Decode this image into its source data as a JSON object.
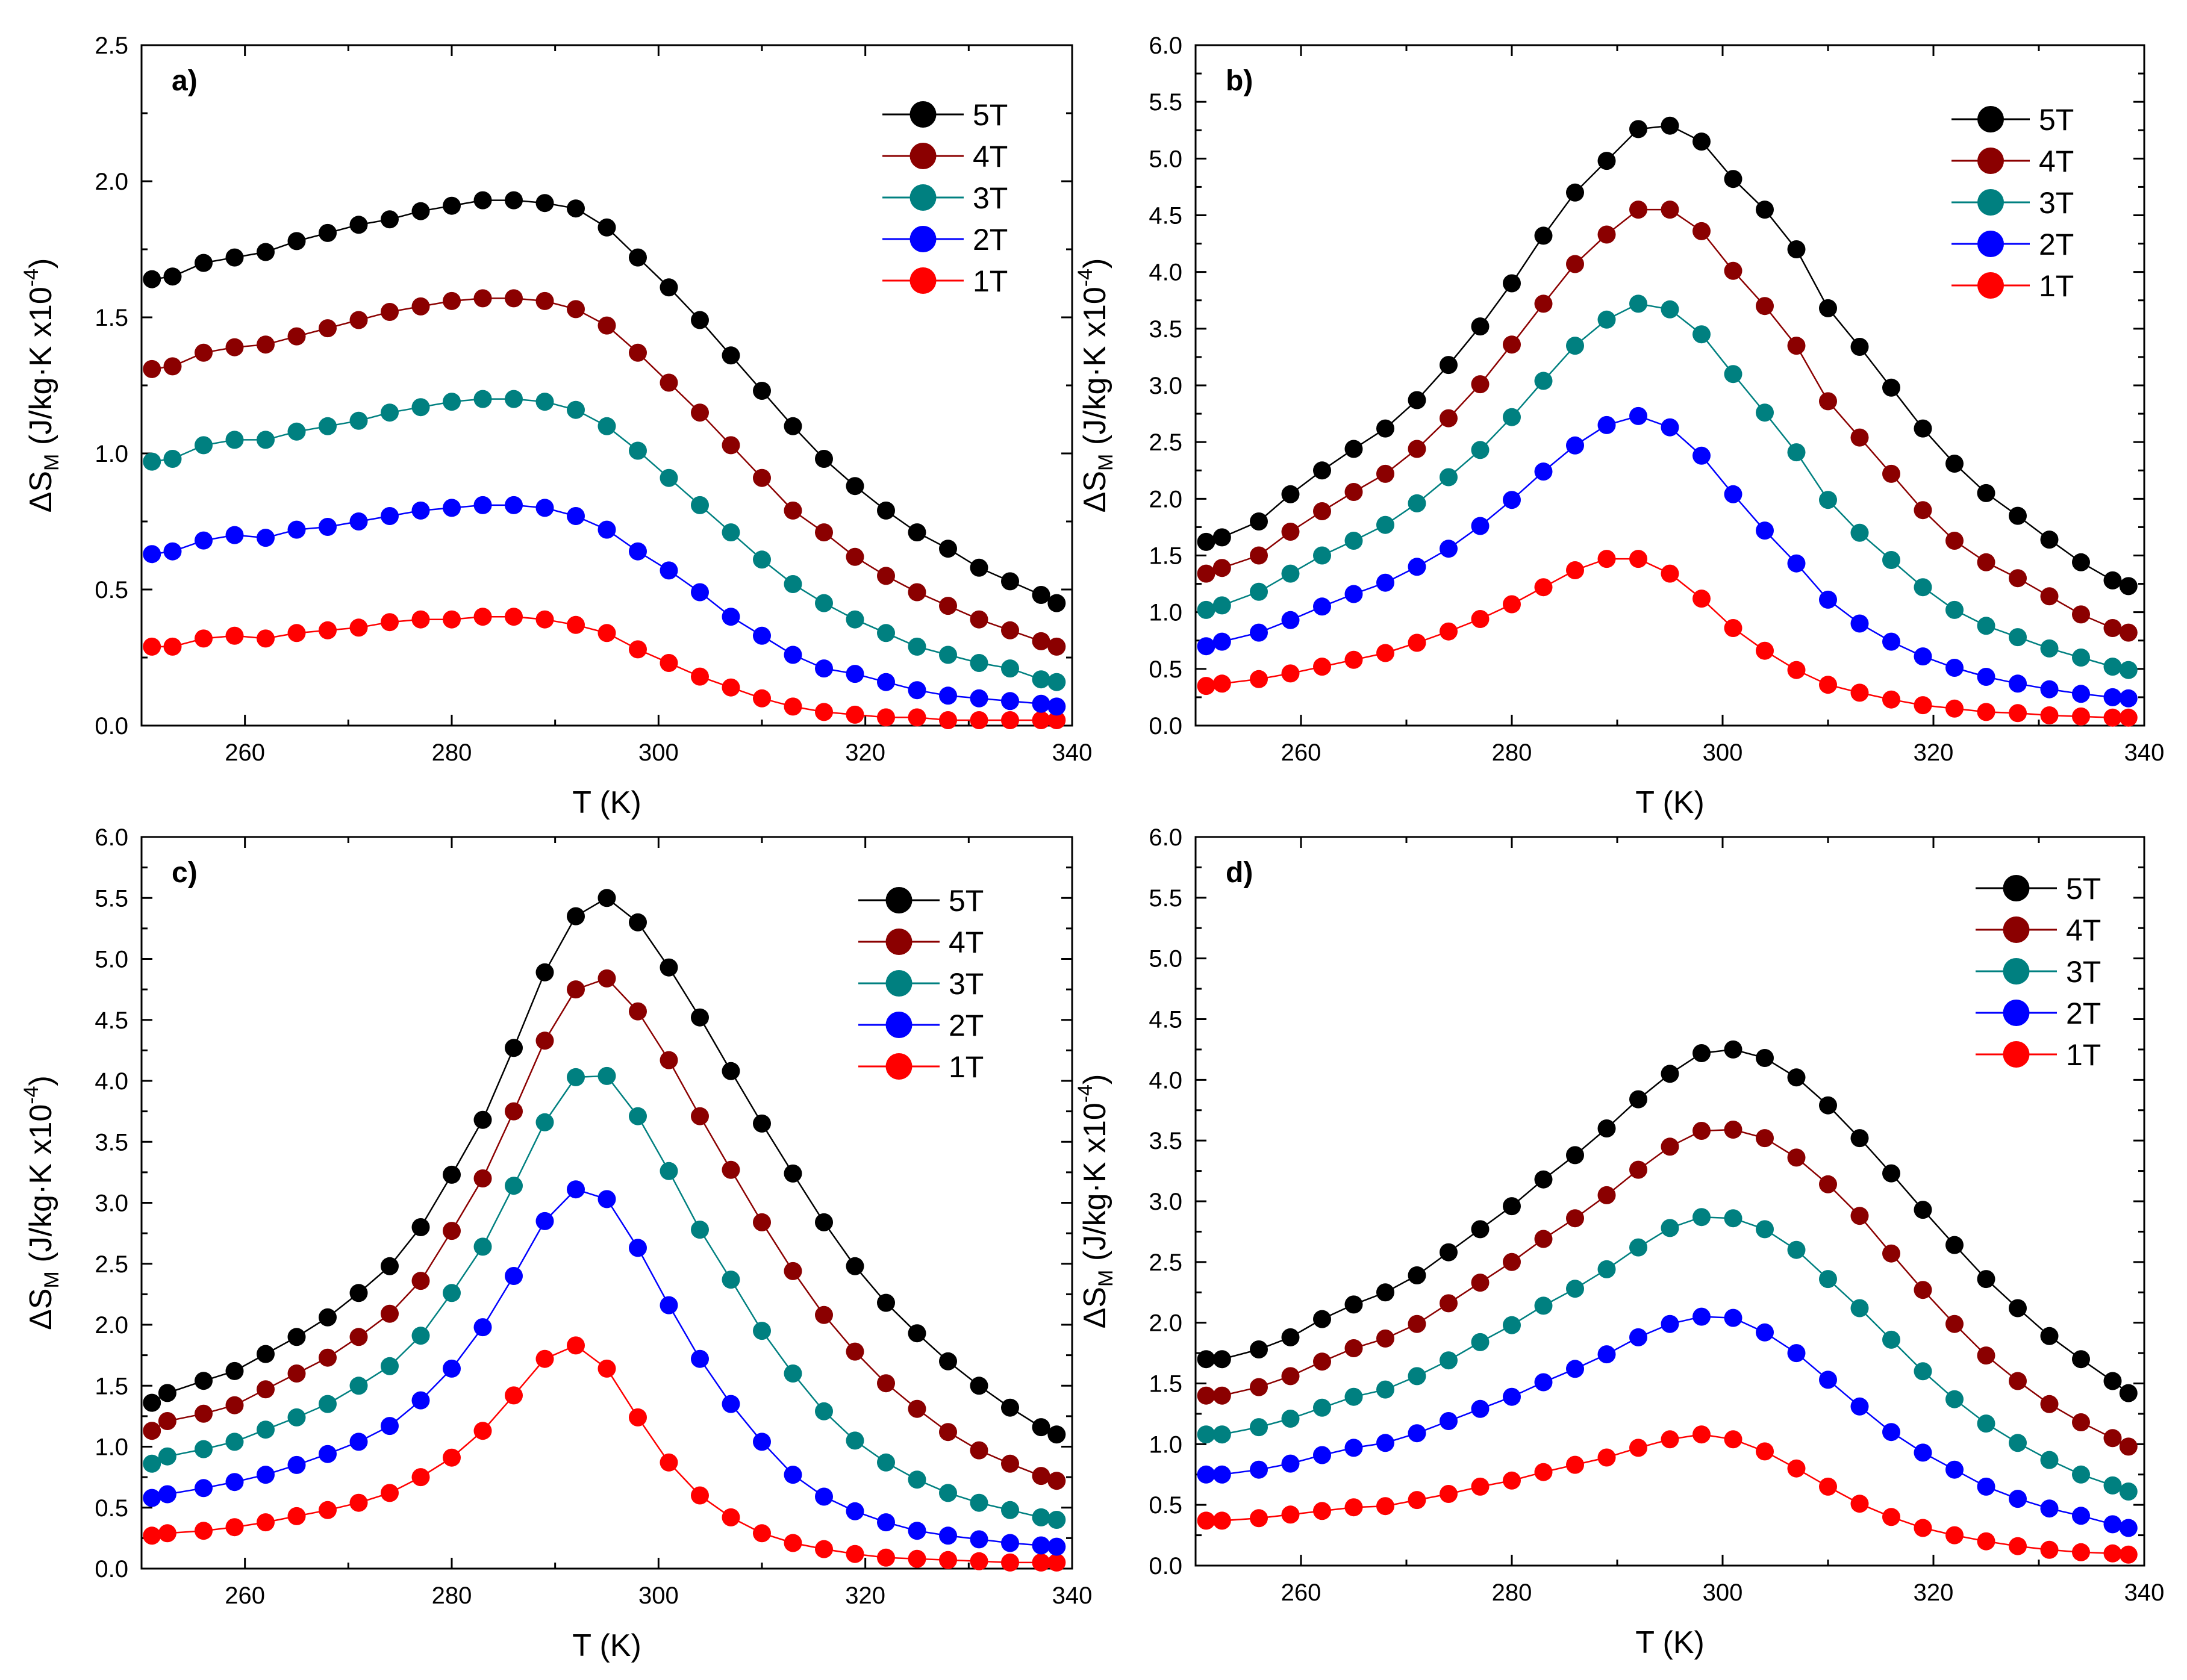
{
  "chart_data": [
    {
      "type": "line",
      "panel_label": "a)",
      "xlabel": "T (K)",
      "ylabel_parts": {
        "delta": "ΔS",
        "sub": "M",
        "unit": " (J/kg·K x10",
        "sup": "-4",
        "close": ")"
      },
      "xlim": [
        250,
        340
      ],
      "ylim": [
        0,
        2.5
      ],
      "xticks": [
        "260",
        "280",
        "300",
        "320",
        "340"
      ],
      "yticks": [
        "0.0",
        "0.5",
        "1.0",
        "1.5",
        "2.0",
        "2.5"
      ],
      "legend_position": "top-right",
      "x": [
        251,
        253,
        256,
        259,
        262,
        265,
        268,
        271,
        274,
        277,
        280,
        283,
        286,
        289,
        292,
        295,
        298,
        301,
        304,
        307,
        310,
        313,
        316,
        319,
        322,
        325,
        328,
        331,
        334,
        337,
        338.5
      ],
      "series": [
        {
          "name": "5T",
          "color": "#000000",
          "values": [
            1.64,
            1.65,
            1.7,
            1.72,
            1.74,
            1.78,
            1.81,
            1.84,
            1.86,
            1.89,
            1.91,
            1.93,
            1.93,
            1.92,
            1.9,
            1.83,
            1.72,
            1.61,
            1.49,
            1.36,
            1.23,
            1.1,
            0.98,
            0.88,
            0.79,
            0.71,
            0.65,
            0.58,
            0.53,
            0.48,
            0.45
          ]
        },
        {
          "name": "4T",
          "color": "#8b0000",
          "values": [
            1.31,
            1.32,
            1.37,
            1.39,
            1.4,
            1.43,
            1.46,
            1.49,
            1.52,
            1.54,
            1.56,
            1.57,
            1.57,
            1.56,
            1.53,
            1.47,
            1.37,
            1.26,
            1.15,
            1.03,
            0.91,
            0.79,
            0.71,
            0.62,
            0.55,
            0.49,
            0.44,
            0.39,
            0.35,
            0.31,
            0.29
          ]
        },
        {
          "name": "3T",
          "color": "#008080",
          "values": [
            0.97,
            0.98,
            1.03,
            1.05,
            1.05,
            1.08,
            1.1,
            1.12,
            1.15,
            1.17,
            1.19,
            1.2,
            1.2,
            1.19,
            1.16,
            1.1,
            1.01,
            0.91,
            0.81,
            0.71,
            0.61,
            0.52,
            0.45,
            0.39,
            0.34,
            0.29,
            0.26,
            0.23,
            0.21,
            0.17,
            0.16
          ]
        },
        {
          "name": "2T",
          "color": "#0000ff",
          "values": [
            0.63,
            0.64,
            0.68,
            0.7,
            0.69,
            0.72,
            0.73,
            0.75,
            0.77,
            0.79,
            0.8,
            0.81,
            0.81,
            0.8,
            0.77,
            0.72,
            0.64,
            0.57,
            0.49,
            0.4,
            0.33,
            0.26,
            0.21,
            0.19,
            0.16,
            0.13,
            0.11,
            0.1,
            0.09,
            0.08,
            0.07
          ]
        },
        {
          "name": "1T",
          "color": "#ff0000",
          "values": [
            0.29,
            0.29,
            0.32,
            0.33,
            0.32,
            0.34,
            0.35,
            0.36,
            0.38,
            0.39,
            0.39,
            0.4,
            0.4,
            0.39,
            0.37,
            0.34,
            0.28,
            0.23,
            0.18,
            0.14,
            0.1,
            0.07,
            0.05,
            0.04,
            0.03,
            0.03,
            0.02,
            0.02,
            0.02,
            0.02,
            0.02
          ]
        }
      ]
    },
    {
      "type": "line",
      "panel_label": "b)",
      "xlabel": "T (K)",
      "ylabel_parts": {
        "delta": "ΔS",
        "sub": "M",
        "unit": " (J/kg·K x10",
        "sup": "-4",
        "close": ")"
      },
      "xlim": [
        250,
        340
      ],
      "ylim": [
        0,
        6
      ],
      "xticks": [
        "260",
        "280",
        "300",
        "320",
        "340"
      ],
      "yticks": [
        "0.0",
        "0.5",
        "1.0",
        "1.5",
        "2.0",
        "2.5",
        "3.0",
        "3.5",
        "4.0",
        "4.5",
        "5.0",
        "5.5",
        "6.0"
      ],
      "legend_position": "top-right",
      "x": [
        251,
        252.5,
        256,
        259,
        262,
        265,
        268,
        271,
        274,
        277,
        280,
        283,
        286,
        289,
        292,
        295,
        298,
        301,
        304,
        307,
        310,
        313,
        316,
        319,
        322,
        325,
        328,
        331,
        334,
        337,
        338.5
      ],
      "series": [
        {
          "name": "5T",
          "color": "#000000",
          "values": [
            1.62,
            1.66,
            1.8,
            2.04,
            2.25,
            2.44,
            2.62,
            2.87,
            3.18,
            3.52,
            3.9,
            4.32,
            4.7,
            4.98,
            5.26,
            5.29,
            5.15,
            4.82,
            4.55,
            4.2,
            3.68,
            3.34,
            2.98,
            2.62,
            2.31,
            2.05,
            1.85,
            1.64,
            1.44,
            1.28,
            1.23
          ]
        },
        {
          "name": "4T",
          "color": "#8b0000",
          "values": [
            1.34,
            1.39,
            1.5,
            1.71,
            1.89,
            2.06,
            2.22,
            2.44,
            2.71,
            3.01,
            3.36,
            3.72,
            4.07,
            4.33,
            4.55,
            4.55,
            4.36,
            4.01,
            3.7,
            3.35,
            2.86,
            2.54,
            2.22,
            1.9,
            1.63,
            1.44,
            1.3,
            1.14,
            0.98,
            0.86,
            0.82
          ]
        },
        {
          "name": "3T",
          "color": "#008080",
          "values": [
            1.02,
            1.06,
            1.18,
            1.34,
            1.5,
            1.63,
            1.77,
            1.96,
            2.19,
            2.43,
            2.72,
            3.04,
            3.35,
            3.58,
            3.72,
            3.67,
            3.45,
            3.1,
            2.76,
            2.41,
            1.99,
            1.7,
            1.46,
            1.22,
            1.02,
            0.88,
            0.78,
            0.68,
            0.6,
            0.52,
            0.49
          ]
        },
        {
          "name": "2T",
          "color": "#0000ff",
          "values": [
            0.7,
            0.74,
            0.82,
            0.93,
            1.05,
            1.16,
            1.26,
            1.4,
            1.56,
            1.76,
            1.99,
            2.24,
            2.47,
            2.65,
            2.73,
            2.63,
            2.38,
            2.04,
            1.72,
            1.43,
            1.11,
            0.9,
            0.74,
            0.61,
            0.51,
            0.43,
            0.37,
            0.32,
            0.28,
            0.25,
            0.24
          ]
        },
        {
          "name": "1T",
          "color": "#ff0000",
          "values": [
            0.35,
            0.37,
            0.41,
            0.46,
            0.52,
            0.58,
            0.64,
            0.73,
            0.83,
            0.94,
            1.07,
            1.22,
            1.37,
            1.47,
            1.47,
            1.34,
            1.12,
            0.86,
            0.66,
            0.49,
            0.36,
            0.29,
            0.23,
            0.18,
            0.15,
            0.12,
            0.11,
            0.09,
            0.08,
            0.07,
            0.07
          ]
        }
      ]
    },
    {
      "type": "line",
      "panel_label": "c)",
      "xlabel": "T (K)",
      "ylabel_parts": {
        "delta": "ΔS",
        "sub": "M",
        "unit": " (J/kg·K x10",
        "sup": "-4",
        "close": ")"
      },
      "xlim": [
        250,
        340
      ],
      "ylim": [
        0,
        6
      ],
      "xticks": [
        "260",
        "280",
        "300",
        "320",
        "340"
      ],
      "yticks": [
        "0.0",
        "0.5",
        "1.0",
        "1.5",
        "2.0",
        "2.5",
        "3.0",
        "3.5",
        "4.0",
        "4.5",
        "5.0",
        "5.5",
        "6.0"
      ],
      "legend_position": "top-right",
      "x": [
        251,
        252.5,
        256,
        259,
        262,
        265,
        268,
        271,
        274,
        277,
        280,
        283,
        286,
        289,
        292,
        295,
        298,
        301,
        304,
        307,
        310,
        313,
        316,
        319,
        322,
        325,
        328,
        331,
        334,
        337,
        338.5
      ],
      "series": [
        {
          "name": "5T",
          "color": "#000000",
          "values": [
            1.36,
            1.44,
            1.54,
            1.62,
            1.76,
            1.9,
            2.06,
            2.26,
            2.48,
            2.8,
            3.23,
            3.68,
            4.27,
            4.89,
            5.35,
            5.5,
            5.3,
            4.93,
            4.52,
            4.08,
            3.65,
            3.24,
            2.84,
            2.48,
            2.18,
            1.93,
            1.7,
            1.5,
            1.32,
            1.16,
            1.1
          ]
        },
        {
          "name": "4T",
          "color": "#8b0000",
          "values": [
            1.13,
            1.21,
            1.27,
            1.34,
            1.47,
            1.6,
            1.73,
            1.9,
            2.09,
            2.36,
            2.77,
            3.2,
            3.75,
            4.33,
            4.75,
            4.84,
            4.57,
            4.17,
            3.71,
            3.27,
            2.84,
            2.44,
            2.08,
            1.78,
            1.52,
            1.31,
            1.12,
            0.97,
            0.86,
            0.76,
            0.72
          ]
        },
        {
          "name": "3T",
          "color": "#008080",
          "values": [
            0.86,
            0.92,
            0.98,
            1.04,
            1.14,
            1.24,
            1.35,
            1.5,
            1.66,
            1.91,
            2.26,
            2.64,
            3.14,
            3.66,
            4.03,
            4.04,
            3.71,
            3.26,
            2.78,
            2.37,
            1.95,
            1.6,
            1.29,
            1.05,
            0.87,
            0.73,
            0.62,
            0.54,
            0.48,
            0.42,
            0.4
          ]
        },
        {
          "name": "2T",
          "color": "#0000ff",
          "values": [
            0.58,
            0.61,
            0.66,
            0.71,
            0.77,
            0.85,
            0.94,
            1.04,
            1.17,
            1.38,
            1.64,
            1.98,
            2.4,
            2.85,
            3.11,
            3.03,
            2.63,
            2.16,
            1.72,
            1.35,
            1.04,
            0.77,
            0.59,
            0.47,
            0.38,
            0.31,
            0.27,
            0.24,
            0.21,
            0.19,
            0.18
          ]
        },
        {
          "name": "1T",
          "color": "#ff0000",
          "values": [
            0.27,
            0.29,
            0.31,
            0.34,
            0.38,
            0.43,
            0.48,
            0.54,
            0.62,
            0.75,
            0.91,
            1.13,
            1.42,
            1.72,
            1.83,
            1.64,
            1.24,
            0.87,
            0.6,
            0.42,
            0.29,
            0.21,
            0.16,
            0.12,
            0.09,
            0.08,
            0.07,
            0.06,
            0.05,
            0.05,
            0.05
          ]
        }
      ]
    },
    {
      "type": "line",
      "panel_label": "d)",
      "xlabel": "T (K)",
      "ylabel_parts": {
        "delta": "ΔS",
        "sub": "M",
        "unit": " (J/kg·K x10",
        "sup": "-4",
        "close": ")"
      },
      "xlim": [
        250,
        340
      ],
      "ylim": [
        0,
        6
      ],
      "xticks": [
        "260",
        "280",
        "300",
        "320",
        "340"
      ],
      "yticks": [
        "0.0",
        "0.5",
        "1.0",
        "1.5",
        "2.0",
        "2.5",
        "3.0",
        "3.5",
        "4.0",
        "4.5",
        "5.0",
        "5.5",
        "6.0"
      ],
      "legend_position": "top-right",
      "x": [
        251,
        252.5,
        256,
        259,
        262,
        265,
        268,
        271,
        274,
        277,
        280,
        283,
        286,
        289,
        292,
        295,
        298,
        301,
        304,
        307,
        310,
        313,
        316,
        319,
        322,
        325,
        328,
        331,
        334,
        337,
        338.5
      ],
      "series": [
        {
          "name": "5T",
          "color": "#000000",
          "values": [
            1.7,
            1.7,
            1.78,
            1.88,
            2.03,
            2.15,
            2.25,
            2.39,
            2.58,
            2.77,
            2.96,
            3.18,
            3.38,
            3.6,
            3.84,
            4.05,
            4.22,
            4.25,
            4.18,
            4.02,
            3.79,
            3.52,
            3.23,
            2.93,
            2.64,
            2.36,
            2.12,
            1.89,
            1.7,
            1.52,
            1.42
          ]
        },
        {
          "name": "4T",
          "color": "#8b0000",
          "values": [
            1.4,
            1.4,
            1.47,
            1.56,
            1.68,
            1.79,
            1.87,
            1.99,
            2.16,
            2.33,
            2.5,
            2.69,
            2.86,
            3.05,
            3.26,
            3.45,
            3.58,
            3.59,
            3.52,
            3.36,
            3.14,
            2.88,
            2.57,
            2.27,
            1.99,
            1.73,
            1.52,
            1.33,
            1.18,
            1.05,
            0.98
          ]
        },
        {
          "name": "3T",
          "color": "#008080",
          "values": [
            1.08,
            1.08,
            1.14,
            1.21,
            1.3,
            1.39,
            1.45,
            1.56,
            1.69,
            1.84,
            1.98,
            2.14,
            2.28,
            2.44,
            2.62,
            2.78,
            2.87,
            2.86,
            2.77,
            2.6,
            2.36,
            2.12,
            1.86,
            1.6,
            1.37,
            1.17,
            1.01,
            0.87,
            0.75,
            0.66,
            0.61
          ]
        },
        {
          "name": "2T",
          "color": "#0000ff",
          "values": [
            0.75,
            0.75,
            0.79,
            0.84,
            0.91,
            0.97,
            1.01,
            1.09,
            1.19,
            1.29,
            1.39,
            1.51,
            1.62,
            1.74,
            1.88,
            1.99,
            2.05,
            2.04,
            1.92,
            1.75,
            1.53,
            1.31,
            1.1,
            0.93,
            0.79,
            0.65,
            0.55,
            0.47,
            0.41,
            0.34,
            0.31
          ]
        },
        {
          "name": "1T",
          "color": "#ff0000",
          "values": [
            0.37,
            0.37,
            0.39,
            0.42,
            0.45,
            0.48,
            0.49,
            0.54,
            0.59,
            0.65,
            0.7,
            0.77,
            0.83,
            0.89,
            0.97,
            1.04,
            1.08,
            1.04,
            0.94,
            0.8,
            0.65,
            0.51,
            0.4,
            0.31,
            0.25,
            0.2,
            0.16,
            0.13,
            0.11,
            0.1,
            0.09
          ]
        }
      ]
    }
  ]
}
